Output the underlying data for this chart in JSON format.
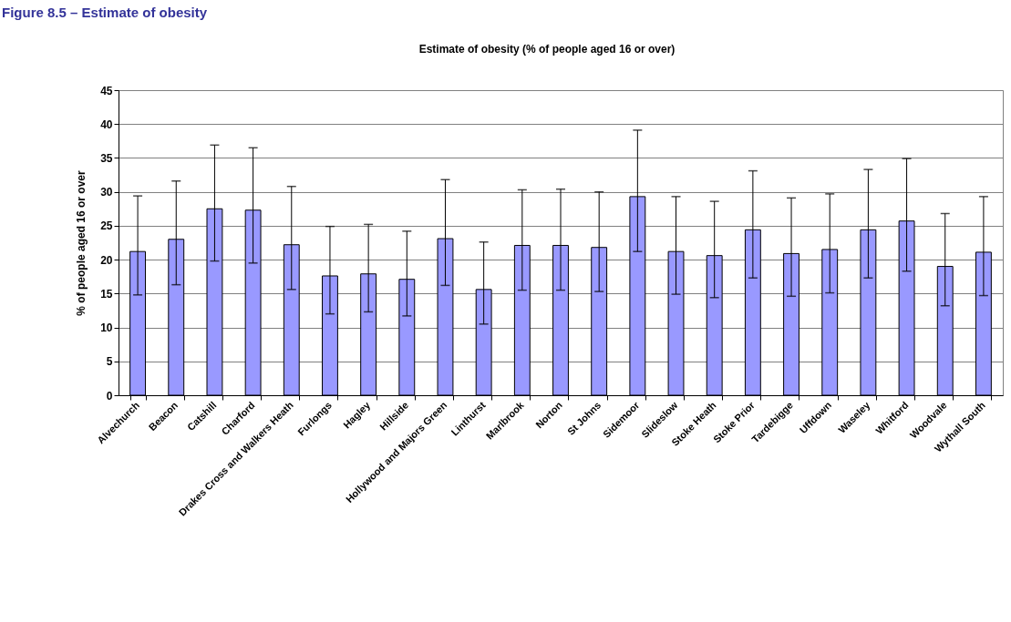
{
  "chart_data": {
    "type": "bar",
    "title": "Estimate of obesity (% of people aged 16 or over)",
    "ylabel": "% of people aged 16 or over",
    "annotations": [
      "Figure 8.5 – Estimate of obesity"
    ],
    "categories": [
      "Alvechurch",
      "Beacon",
      "Catshill",
      "Charford",
      "Drakes Cross and Walkers Heath",
      "Furlongs",
      "Hagley",
      "Hillside",
      "Hollywood and Majors Green",
      "Linthurst",
      "Marlbrook",
      "Norton",
      "St Johns",
      "Sidemoor",
      "Slideslow",
      "Stoke Heath",
      "Stoke Prior",
      "Tardebigge",
      "Uffdown",
      "Waseley",
      "Whitford",
      "Woodvale",
      "Wythall South"
    ],
    "values": [
      21.2,
      23.0,
      27.5,
      27.3,
      22.2,
      17.6,
      17.9,
      17.1,
      23.1,
      15.6,
      22.1,
      22.1,
      21.8,
      29.3,
      21.2,
      20.6,
      24.4,
      20.9,
      21.5,
      24.4,
      25.7,
      19.0,
      21.1
    ],
    "errors": [
      [
        14.8,
        29.4
      ],
      [
        16.3,
        31.6
      ],
      [
        19.8,
        36.9
      ],
      [
        19.5,
        36.5
      ],
      [
        15.6,
        30.8
      ],
      [
        12.0,
        24.9
      ],
      [
        12.3,
        25.2
      ],
      [
        11.7,
        24.2
      ],
      [
        16.2,
        31.8
      ],
      [
        10.5,
        22.6
      ],
      [
        15.5,
        30.3
      ],
      [
        15.5,
        30.4
      ],
      [
        15.3,
        30.0
      ],
      [
        21.2,
        39.1
      ],
      [
        14.9,
        29.3
      ],
      [
        14.4,
        28.6
      ],
      [
        17.3,
        33.1
      ],
      [
        14.6,
        29.1
      ],
      [
        15.1,
        29.7
      ],
      [
        17.3,
        33.3
      ],
      [
        18.3,
        34.9
      ],
      [
        13.2,
        26.8
      ],
      [
        14.7,
        29.3
      ]
    ],
    "color": "#9999ff",
    "ylim": [
      0,
      45
    ],
    "yticks": [
      0,
      5,
      10,
      15,
      20,
      25,
      30,
      35,
      40,
      45
    ],
    "grid": "y"
  }
}
